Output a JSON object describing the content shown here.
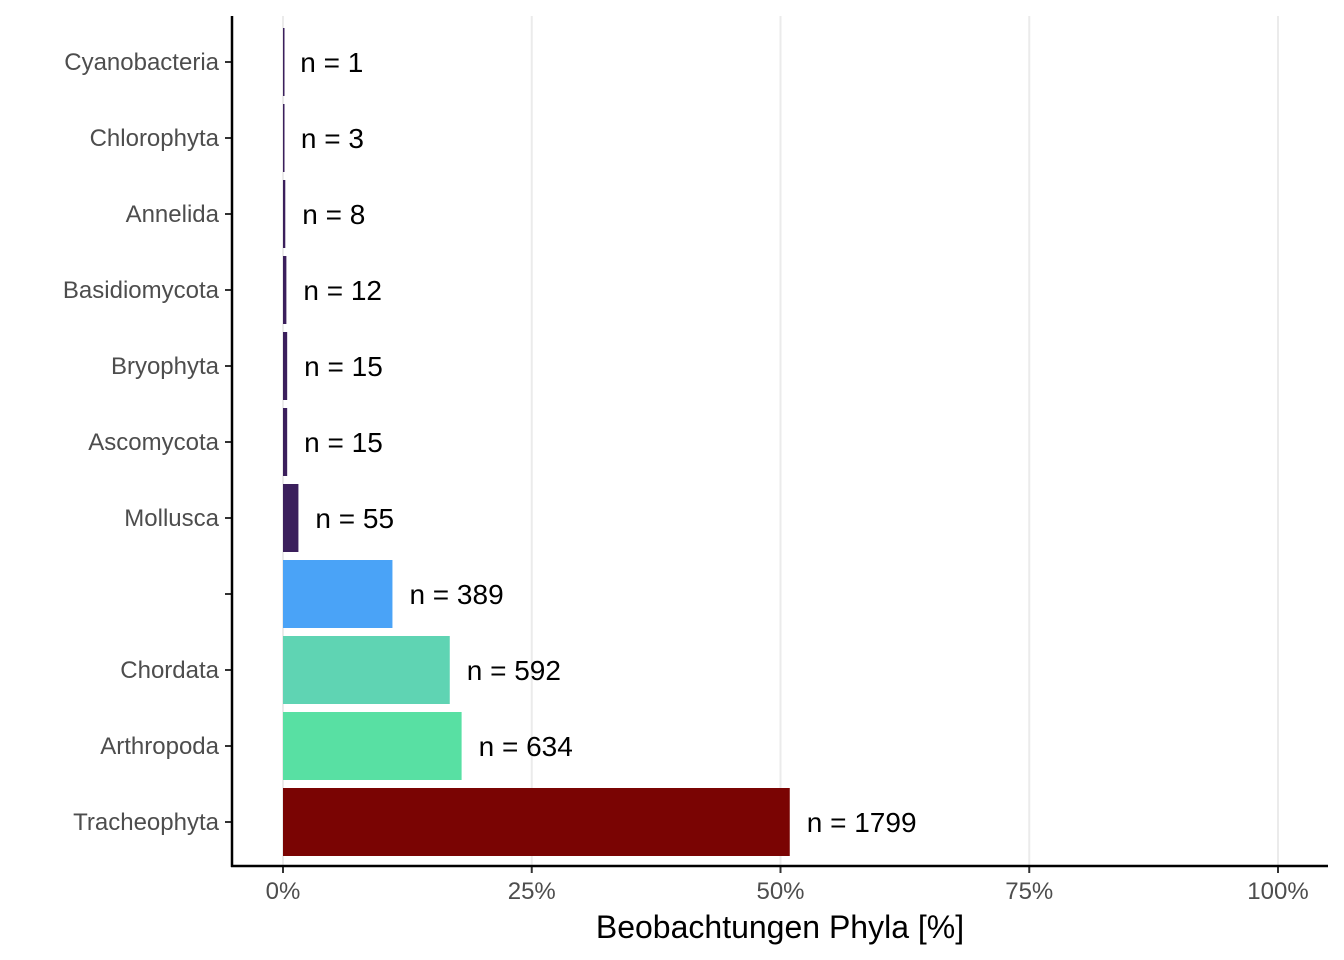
{
  "chart_data": {
    "type": "bar",
    "orientation": "horizontal",
    "categories": [
      "Cyanobacteria",
      "Chlorophyta",
      "Annelida",
      "Basidiomycota",
      "Bryophyta",
      "Ascomycota",
      "Mollusca",
      "",
      "Chordata",
      "Arthropoda",
      "Tracheophyta"
    ],
    "values": [
      0.03,
      0.09,
      0.23,
      0.34,
      0.42,
      0.42,
      1.55,
      11.0,
      16.76,
      17.95,
      50.93
    ],
    "labels": [
      "n = 1",
      "n = 3",
      "n = 8",
      "n = 12",
      "n = 15",
      "n = 15",
      "n = 55",
      "n = 389",
      "n = 592",
      "n = 634",
      "n = 1799"
    ],
    "colors": [
      "#3b1f5c",
      "#3b1f5c",
      "#3b1f5c",
      "#3b1f5c",
      "#3b1f5c",
      "#3b1f5c",
      "#3b1f5c",
      "#4aa3f7",
      "#5fd4b3",
      "#58e0a3",
      "#7a0403"
    ],
    "xlabel": "Beobachtungen Phyla [%]",
    "ylabel": "",
    "xlim": [
      0,
      100
    ],
    "x_ticks": [
      0,
      25,
      50,
      75,
      100
    ],
    "x_tick_labels": [
      "0%",
      "25%",
      "50%",
      "75%",
      "100%"
    ],
    "grid": "vertical major",
    "legend": "none"
  }
}
